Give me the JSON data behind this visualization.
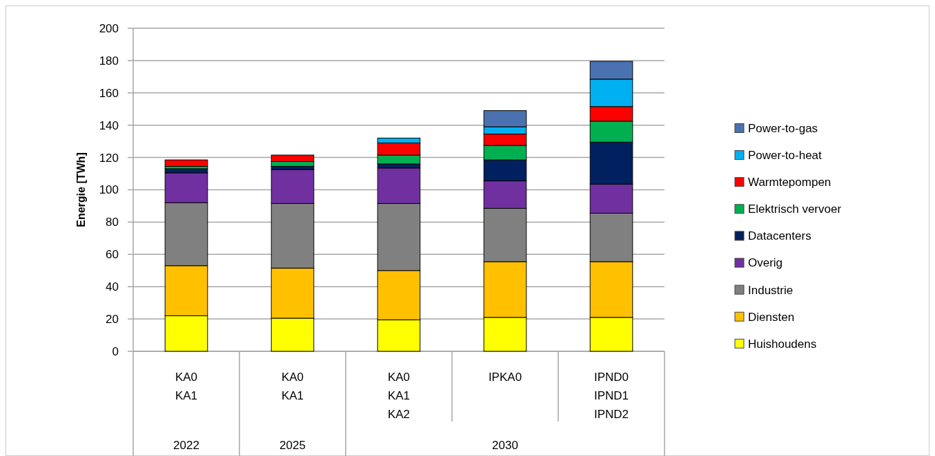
{
  "chart_data": {
    "type": "bar",
    "stacked": true,
    "ylabel": "Energie [TWh]",
    "categories": [
      "KA0\nKA1",
      "KA0\nKA1",
      "KA0\nKA1\nKA2",
      "IPKA0",
      "IPND0\nIPND1\nIPND2"
    ],
    "annotations": [
      "2022",
      "2025",
      "2030"
    ],
    "ylim": [
      0,
      200
    ],
    "yticks": [
      0,
      20,
      40,
      60,
      80,
      100,
      120,
      140,
      160,
      180,
      200
    ],
    "grid": "y",
    "legend": "right",
    "series": [
      {
        "name": "Huishoudens",
        "color": "#ffff00",
        "values": [
          22,
          20.5,
          19.5,
          21,
          21
        ]
      },
      {
        "name": "Diensten",
        "color": "#ffc000",
        "values": [
          31,
          31,
          30.5,
          34.5,
          34.5
        ]
      },
      {
        "name": "Industrie",
        "color": "#808080",
        "values": [
          39,
          40,
          41.5,
          33,
          30
        ]
      },
      {
        "name": "Overig",
        "color": "#7030a0",
        "values": [
          18.5,
          21,
          22,
          17,
          18
        ]
      },
      {
        "name": "Datacenters",
        "color": "#002060",
        "values": [
          2.5,
          2,
          2.5,
          13,
          26
        ]
      },
      {
        "name": "Elektrisch vervoer",
        "color": "#00b050",
        "values": [
          1.5,
          3,
          5.5,
          9,
          13
        ]
      },
      {
        "name": "Warmtepompen",
        "color": "#ff0000",
        "values": [
          4,
          4,
          7.5,
          7,
          9
        ]
      },
      {
        "name": "Power-to-heat",
        "color": "#00b0f0",
        "values": [
          null,
          null,
          3,
          4.5,
          17
        ]
      },
      {
        "name": "Power-to-gas",
        "color": "#4a72b0",
        "values": [
          null,
          null,
          null,
          10,
          11
        ]
      }
    ]
  }
}
